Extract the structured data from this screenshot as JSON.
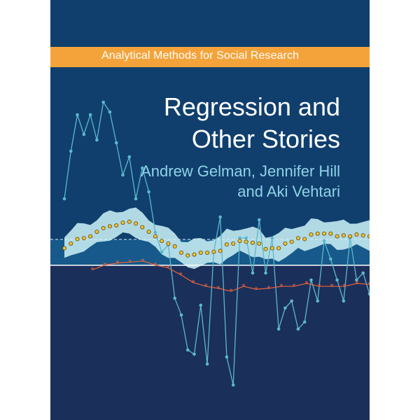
{
  "series": "Analytical Methods for Social Research",
  "title": {
    "line1": "Regression and",
    "line2": "Other Stories"
  },
  "authors": {
    "line1": "Andrew Gelman, Jennifer Hill",
    "line2": "and Aki Vehtari"
  },
  "colors": {
    "background_top": "#103f6e",
    "background_bottom": "#1b2f5b",
    "banner": "#f4a33a",
    "author_text": "#8fd3e6",
    "band_fill": "#bfe6ee",
    "raw_series": "#5bb8cc",
    "smoothed_markers": "#f2c12e",
    "comparison_series": "#e8643c"
  },
  "chart_data": {
    "type": "line",
    "series": [
      {
        "values": [
          0.72,
          0.38,
          0.12,
          0.26,
          0.12,
          0.3,
          0.03,
          0.1,
          0.32,
          0.55,
          0.42,
          0.72,
          0.5,
          0.67,
          0.96,
          1.1,
          1.05,
          1.43,
          1.55,
          1.8,
          1.83,
          1.48,
          1.9,
          1.1,
          0.85,
          1.85,
          2.05,
          1.0,
          1.0,
          1.25,
          0.87,
          1.25,
          1.0,
          1.65,
          1.5,
          1.45,
          1.65,
          1.6,
          1.3,
          1.45,
          1.02,
          1.15,
          1.3,
          1.45,
          1.0,
          1.3,
          1.25,
          1.4
        ]
      },
      {
        "values": [
          0.65,
          0.6,
          0.55,
          0.54,
          0.52,
          0.47,
          0.43,
          0.41,
          0.4,
          0.37,
          0.36,
          0.38,
          0.42,
          0.47,
          0.52,
          0.57,
          0.6,
          0.63,
          0.7,
          0.73,
          0.72,
          0.7,
          0.7,
          0.69,
          0.68,
          0.61,
          0.6,
          0.57,
          0.58,
          0.59,
          0.6,
          0.66,
          0.65,
          0.65,
          0.6,
          0.58,
          0.54,
          0.55,
          0.5,
          0.49,
          0.49,
          0.49,
          0.52,
          0.51,
          0.52,
          0.5,
          0.51,
          0.52
        ]
      },
      {
        "values": [
          0.55,
          0.5,
          0.48,
          0.47,
          0.46,
          0.5,
          0.53,
          0.6,
          0.68,
          0.72,
          0.74,
          0.77,
          0.72,
          0.75,
          0.74,
          0.72,
          0.72,
          0.69,
          0.72,
          0.72,
          0.72,
          0.69,
          0.7
        ]
      }
    ]
  }
}
